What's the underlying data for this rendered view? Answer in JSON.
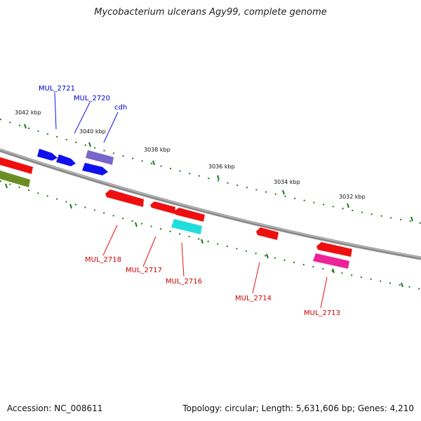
{
  "title": "Mycobacterium ulcerans Agy99, complete genome",
  "footer": {
    "accession": "Accession: NC_008611",
    "summary": "Topology: circular; Length: 5,631,606 bp; Genes: 4,210"
  },
  "scale_labels": [
    "3042 kbp",
    "3040 kbp",
    "3038 kbp",
    "3036 kbp",
    "3034 kbp",
    "3032 kbp"
  ],
  "gene_labels": [
    {
      "name": "MUL_2721",
      "strand": "forward",
      "color": "#0000cc"
    },
    {
      "name": "MUL_2720",
      "strand": "forward",
      "color": "#0000cc"
    },
    {
      "name": "cdh",
      "strand": "forward",
      "color": "#0000cc"
    },
    {
      "name": "MUL_2718",
      "strand": "reverse",
      "color": "#cc0000"
    },
    {
      "name": "MUL_2717",
      "strand": "reverse",
      "color": "#cc0000"
    },
    {
      "name": "MUL_2716",
      "strand": "reverse",
      "color": "#cc0000"
    },
    {
      "name": "MUL_2714",
      "strand": "reverse",
      "color": "#cc0000"
    },
    {
      "name": "MUL_2713",
      "strand": "reverse",
      "color": "#cc0000"
    }
  ],
  "colors": {
    "backbone": "#888888",
    "ticks": "#1a7a1a",
    "forward": "#1010ee",
    "reverse": "#ee1010",
    "cyan": "#22dddd",
    "magenta": "#ee2299",
    "purple": "#7766cc",
    "olive": "#6b8e23"
  }
}
